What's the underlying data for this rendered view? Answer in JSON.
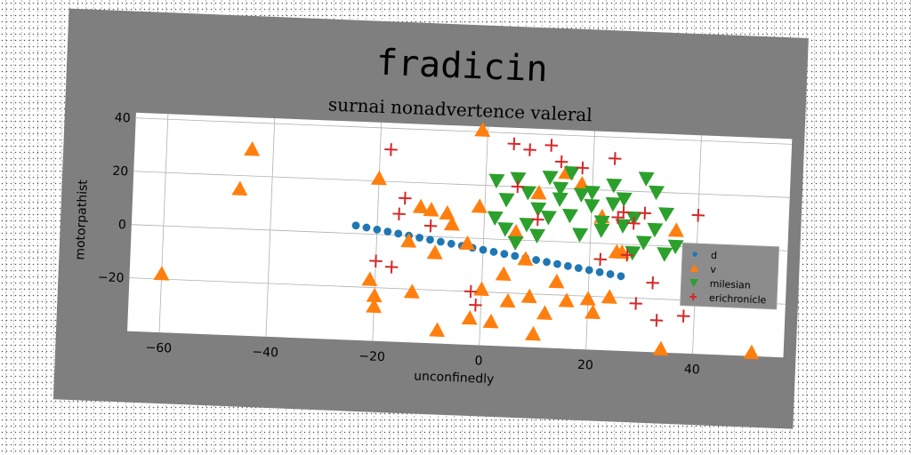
{
  "chart_data": {
    "type": "scatter",
    "title": "fradicin",
    "subtitle": "surnai nonadvertence valeral",
    "xlabel": "unconfinedly",
    "ylabel": "motorpathist",
    "xlim": [
      -66,
      57
    ],
    "ylim": [
      -40,
      42
    ],
    "xticks": [
      -60,
      -40,
      -20,
      0,
      20,
      40
    ],
    "yticks": [
      -20,
      0,
      20,
      40
    ],
    "grid": true,
    "legend_position": "right",
    "series": [
      {
        "name": "d",
        "marker": "circle",
        "color": "#1f77b4",
        "x": [
          -24,
          -22,
          -20,
          -18,
          -16,
          -14,
          -12,
          -10,
          -8,
          -6,
          -4,
          -2,
          0,
          2,
          4,
          6,
          8,
          10,
          12,
          14,
          16,
          18,
          20,
          22,
          24,
          26
        ],
        "y": [
          3,
          2.4,
          1.8,
          1.2,
          0.6,
          0,
          -0.6,
          -1.2,
          -1.8,
          -2.4,
          -3,
          -3.6,
          -4.2,
          -4.8,
          -5.4,
          -6,
          -6.6,
          -7.2,
          -7.8,
          -8.4,
          -9,
          -9.6,
          -10.2,
          -10.8,
          -11.4,
          -12
        ]
      },
      {
        "name": "v",
        "marker": "triangle-up",
        "color": "#ff7f0e",
        "x": [
          -60,
          -44,
          -46,
          -20,
          -21,
          -20,
          -20,
          -14,
          -13,
          -12,
          -10,
          -9,
          -8,
          -7,
          -6,
          -2,
          -1,
          -3,
          0,
          -1,
          2,
          4,
          5,
          6,
          8,
          9,
          10,
          10,
          12,
          14,
          15,
          16,
          18,
          20,
          21,
          22,
          24,
          25,
          26,
          34,
          36,
          51
        ],
        "y": [
          -18,
          30,
          15,
          21,
          -17,
          -23,
          -27,
          -2,
          -21,
          11,
          10,
          -6,
          -35,
          9,
          5,
          -30,
          41,
          -2,
          -19,
          12,
          -31,
          -13,
          -23,
          3,
          -7,
          -21,
          -35,
          18,
          -27,
          -15,
          26,
          -22,
          22,
          -21,
          -26,
          10,
          -20,
          -3,
          -3,
          -42,
          6,
          -48
        ]
      },
      {
        "name": "milesian",
        "marker": "triangle-down",
        "color": "#2ca02c",
        "x": [
          2,
          4,
          6,
          8,
          10,
          12,
          14,
          16,
          18,
          20,
          22,
          24,
          26,
          28,
          30,
          32,
          34,
          36,
          2,
          4,
          6,
          8,
          10,
          12,
          14,
          16,
          18,
          20,
          22,
          24,
          26,
          28,
          30,
          32,
          34
        ],
        "y": [
          22,
          15,
          23,
          18,
          12,
          24,
          20,
          26,
          18,
          14,
          8,
          22,
          17,
          10,
          25,
          20,
          12,
          0,
          8,
          4,
          -1,
          6,
          2,
          9,
          16,
          10,
          3,
          19,
          5,
          15,
          7,
          -3,
          1,
          6,
          -3
        ]
      },
      {
        "name": "erichronicle",
        "marker": "plus",
        "color": "#d62728",
        "x": [
          -18,
          -15,
          -16,
          -10,
          -20,
          -17,
          -2,
          5,
          8,
          12,
          14,
          18,
          24,
          25,
          26,
          28,
          30,
          32,
          33,
          38,
          40,
          6,
          10,
          22,
          27,
          29,
          -1
        ],
        "y": [
          32,
          14,
          8,
          4,
          -10,
          -12,
          -20,
          36,
          34,
          36,
          30,
          28,
          32,
          10,
          12,
          8,
          12,
          -14,
          -28,
          -26,
          12,
          20,
          8,
          -6,
          -4,
          -22,
          -25
        ]
      }
    ]
  }
}
